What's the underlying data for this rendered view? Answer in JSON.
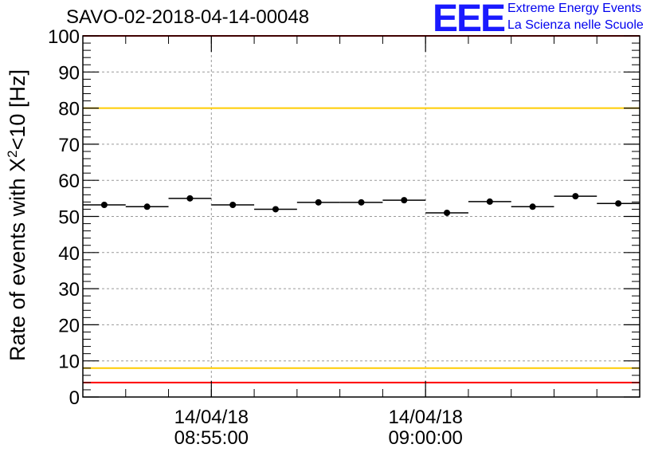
{
  "chart_data": {
    "type": "scatter",
    "title": "SAVO-02-2018-04-14-00048",
    "ylabel_prefix": "Rate of events with X",
    "ylabel_sup": "2",
    "ylabel_suffix": "<10 [Hz]",
    "ylim": [
      0,
      100
    ],
    "yticks": [
      "0",
      "10",
      "20",
      "30",
      "40",
      "50",
      "60",
      "70",
      "80",
      "90",
      "100"
    ],
    "xticks": [
      {
        "date": "14/04/18",
        "time": "08:55:00",
        "minutes": 8.0
      },
      {
        "date": "14/04/18",
        "time": "09:00:00",
        "minutes": 13.0
      }
    ],
    "xlim_minutes": [
      5.0,
      18.0
    ],
    "grid": true,
    "points": [
      {
        "x": 5.5,
        "y": 53.2,
        "half_width": 0.5
      },
      {
        "x": 6.5,
        "y": 52.7,
        "half_width": 0.5
      },
      {
        "x": 7.5,
        "y": 55.0,
        "half_width": 0.5
      },
      {
        "x": 8.5,
        "y": 53.2,
        "half_width": 0.5
      },
      {
        "x": 9.5,
        "y": 52.0,
        "half_width": 0.5
      },
      {
        "x": 10.5,
        "y": 53.9,
        "half_width": 0.5
      },
      {
        "x": 11.5,
        "y": 53.9,
        "half_width": 0.5
      },
      {
        "x": 12.5,
        "y": 54.5,
        "half_width": 0.5
      },
      {
        "x": 13.5,
        "y": 51.0,
        "half_width": 0.5
      },
      {
        "x": 14.5,
        "y": 54.1,
        "half_width": 0.5
      },
      {
        "x": 15.5,
        "y": 52.7,
        "half_width": 0.5
      },
      {
        "x": 16.5,
        "y": 55.6,
        "half_width": 0.5
      },
      {
        "x": 17.5,
        "y": 53.6,
        "half_width": 0.5
      }
    ],
    "threshold_lines": [
      {
        "y": 100,
        "color": "#ff0000"
      },
      {
        "y": 80,
        "color": "#ffcc00"
      },
      {
        "y": 8,
        "color": "#ffcc00"
      },
      {
        "y": 4,
        "color": "#ff0000"
      }
    ]
  },
  "logo": {
    "mark": "EEE",
    "line1": "Extreme Energy Events",
    "line2": "La Scienza nelle Scuole",
    "color": "#1a1aff"
  }
}
